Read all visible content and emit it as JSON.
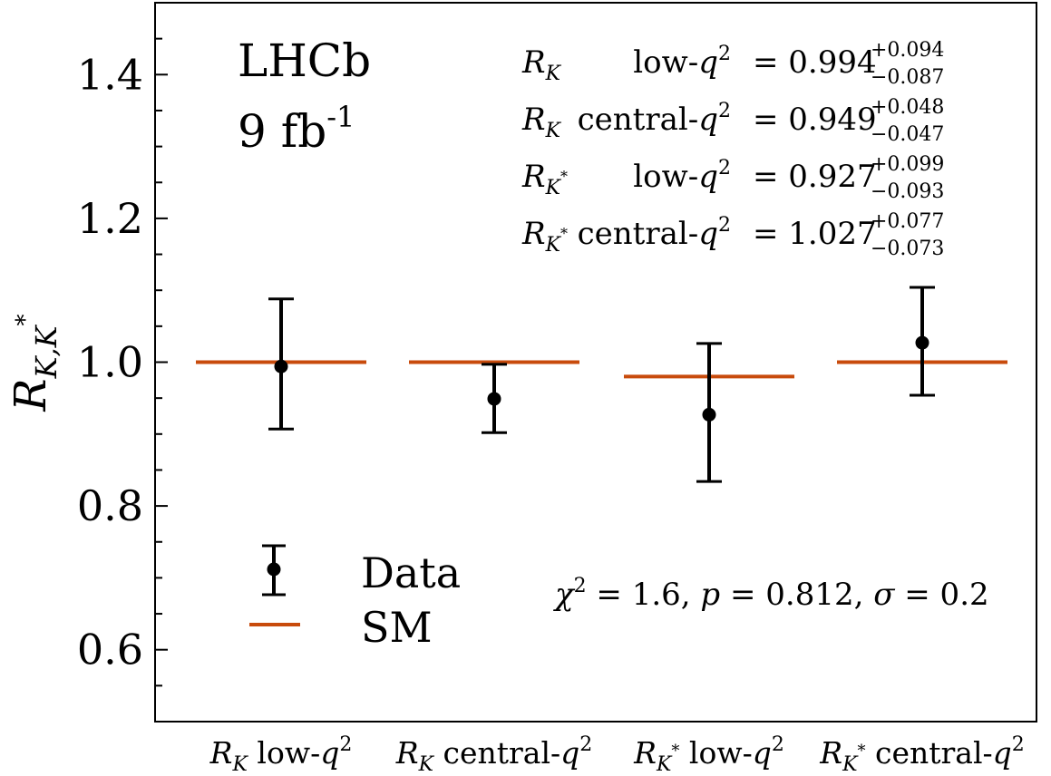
{
  "chart_data": {
    "type": "scatter",
    "ylabel": "R_{K,K*}",
    "ylim": [
      0.5,
      1.5
    ],
    "yticks": [
      0.6,
      0.8,
      1.0,
      1.2,
      1.4
    ],
    "ytick_labels": [
      "0.6",
      "0.8",
      "1.0",
      "1.2",
      "1.4"
    ],
    "categories": [
      {
        "sym": "R",
        "sub": "K",
        "sup": "",
        "text": "low-",
        "q": "q",
        "q2": "2"
      },
      {
        "sym": "R",
        "sub": "K",
        "sup": "",
        "text": "central-",
        "q": "q",
        "q2": "2"
      },
      {
        "sym": "R",
        "sub": "K",
        "sup": "*",
        "text": "low-",
        "q": "q",
        "q2": "2"
      },
      {
        "sym": "R",
        "sub": "K",
        "sup": "*",
        "text": "central-",
        "q": "q",
        "q2": "2"
      }
    ],
    "series": [
      {
        "name": "Data",
        "values": [
          0.994,
          0.949,
          0.927,
          1.027
        ],
        "err_plus": [
          0.094,
          0.048,
          0.099,
          0.077
        ],
        "err_minus": [
          0.087,
          0.047,
          0.093,
          0.073
        ],
        "color": "#000000"
      },
      {
        "name": "SM",
        "values": [
          1.0,
          1.0,
          0.98,
          1.0
        ],
        "color": "#c84b0c"
      }
    ],
    "annotations": {
      "experiment": "LHCb",
      "lumi_value": "9",
      "lumi_unit": "fb",
      "lumi_exp": "-1",
      "results": [
        {
          "label_sub": "K",
          "label_sup": "",
          "region": "low-",
          "value": "0.994",
          "plus": "+0.094",
          "minus": "−0.087"
        },
        {
          "label_sub": "K",
          "label_sup": "",
          "region": "central-",
          "value": "0.949",
          "plus": "+0.048",
          "minus": "−0.047"
        },
        {
          "label_sub": "K",
          "label_sup": "*",
          "region": "low-",
          "value": "0.927",
          "plus": "+0.099",
          "minus": "−0.093"
        },
        {
          "label_sub": "K",
          "label_sup": "*",
          "region": "central-",
          "value": "1.027",
          "plus": "+0.077",
          "minus": "−0.073"
        }
      ],
      "stats": {
        "chi2": "1.6",
        "p": "0.812",
        "sigma": "0.2"
      }
    },
    "legend": {
      "placement": "lower-left"
    },
    "grid": false
  }
}
